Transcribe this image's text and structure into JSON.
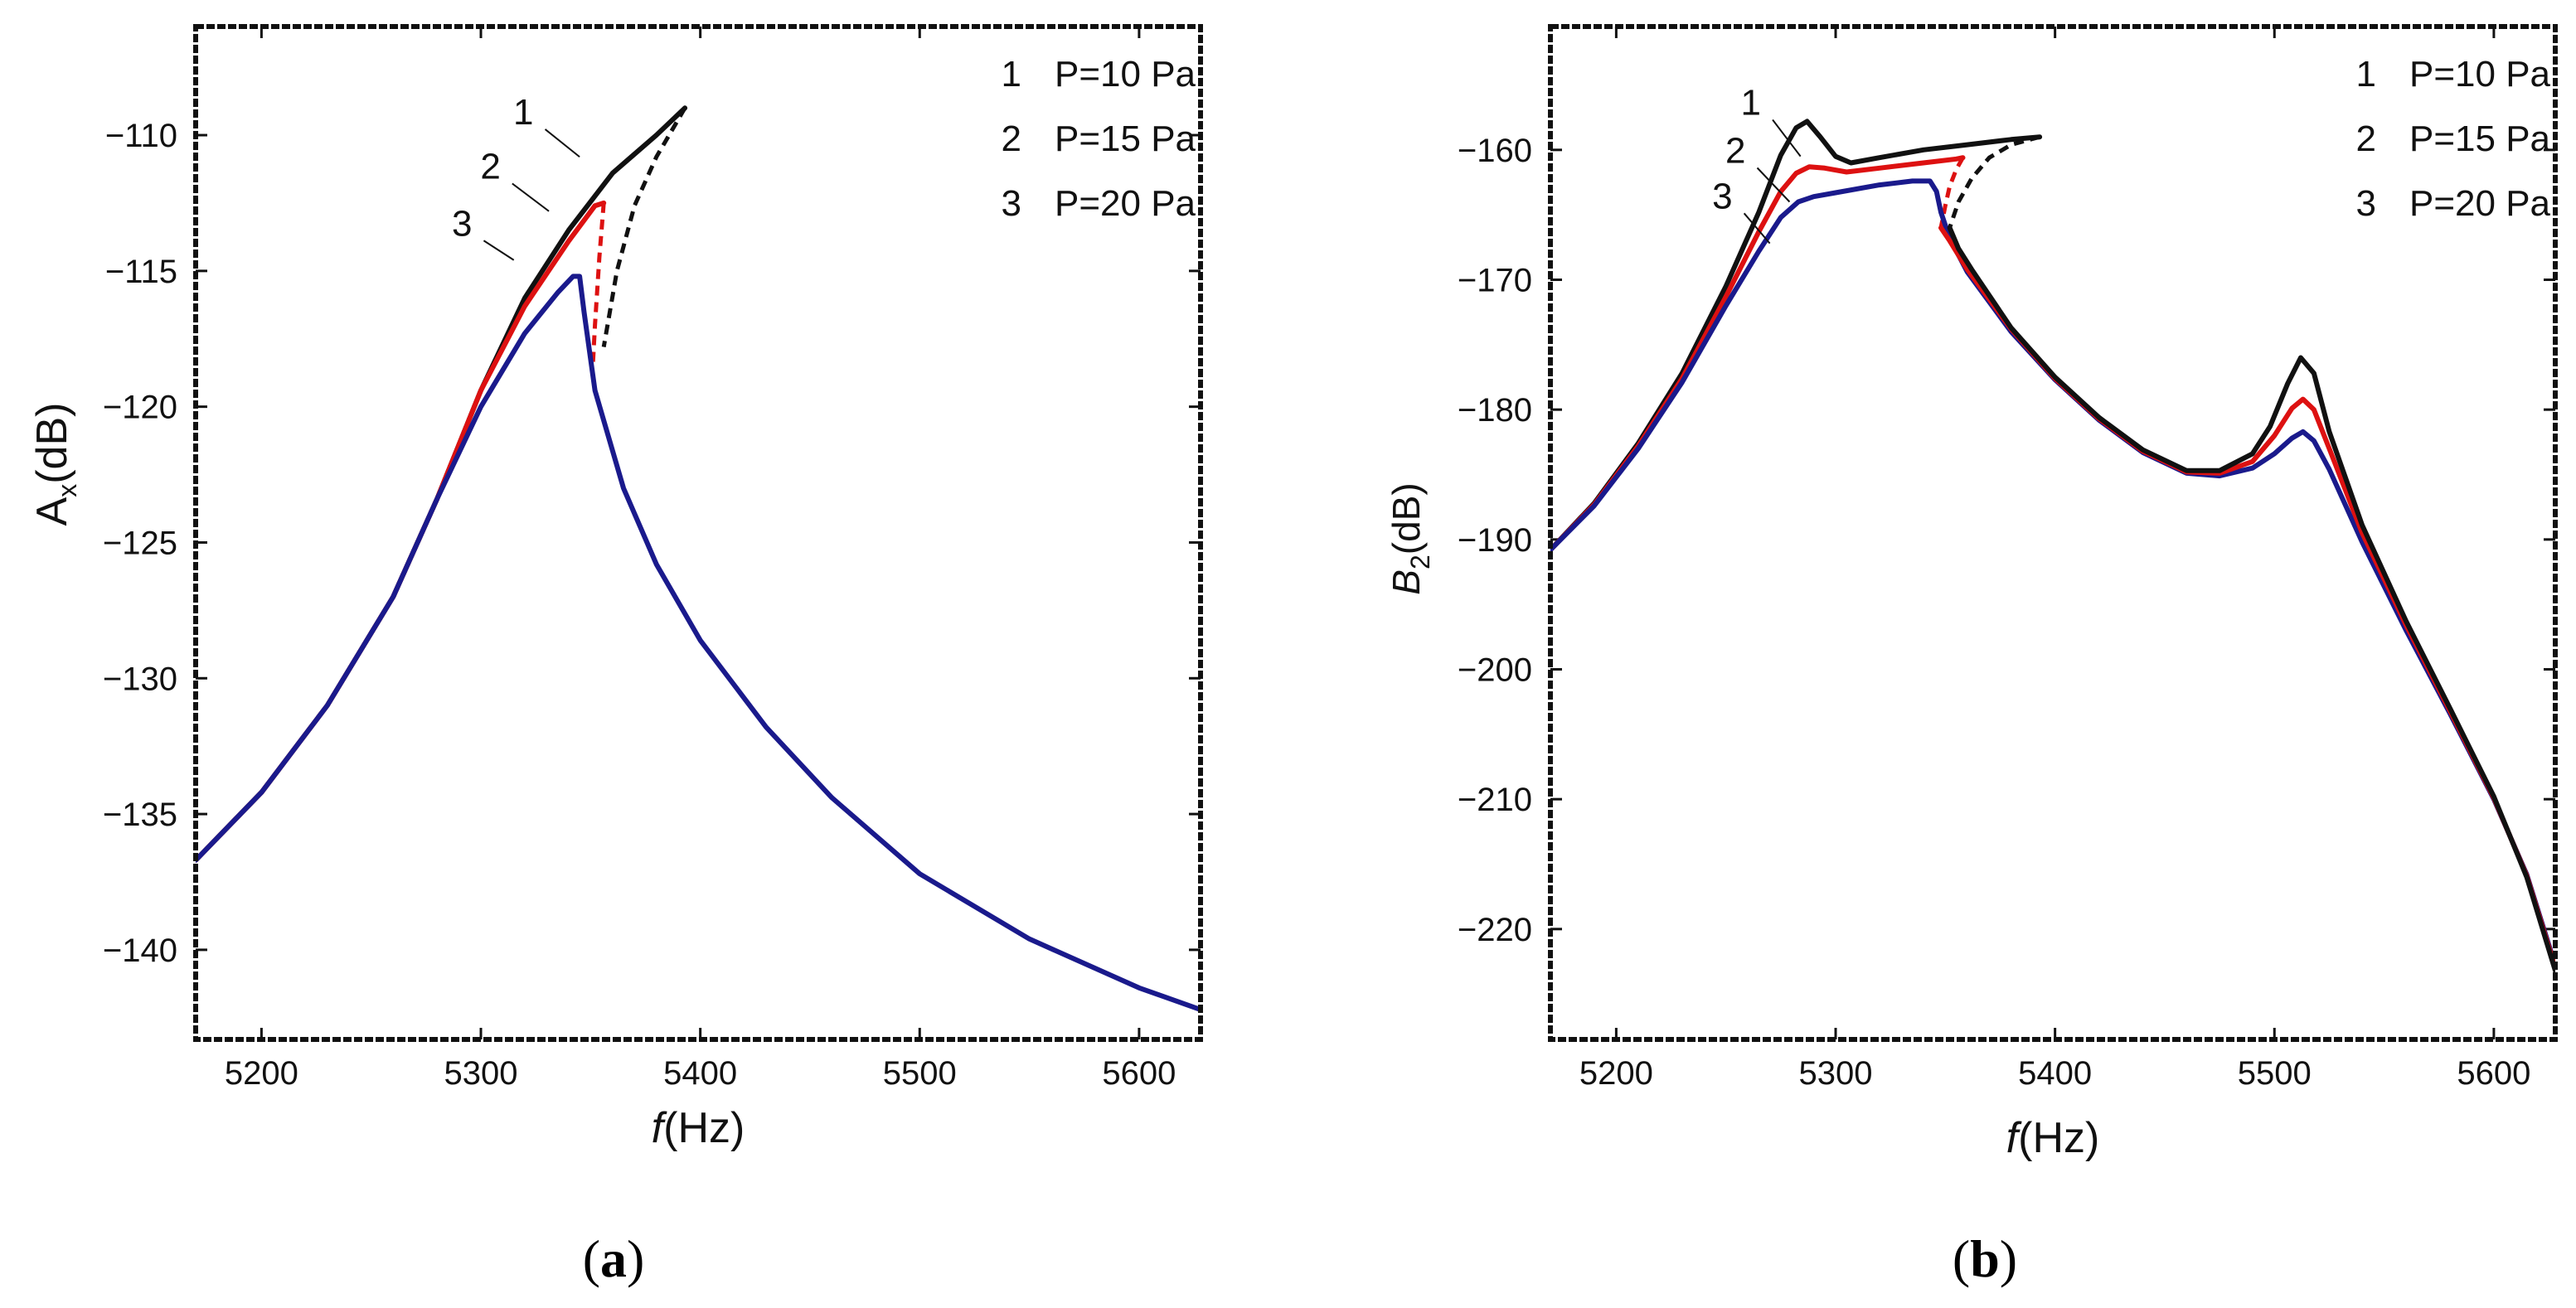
{
  "chart_data": [
    {
      "id": "a",
      "type": "line",
      "caption": {
        "open": "(",
        "letter": "a",
        "close": ")"
      },
      "xlabel": {
        "italic": "f",
        "rest": "(Hz)"
      },
      "ylabel": {
        "main": "A",
        "sub": "x",
        "rest": "(dB)"
      },
      "xlim": [
        5170,
        5628
      ],
      "ylim": [
        -143.3,
        -106.0
      ],
      "xticks": [
        5200,
        5300,
        5400,
        5500,
        5600
      ],
      "yticks": [
        -110,
        -115,
        -120,
        -125,
        -130,
        -135,
        -140
      ],
      "xtick_labels": [
        "5200",
        "5300",
        "5400",
        "5500",
        "5600"
      ],
      "ytick_labels": [
        "−110",
        "−115",
        "−120",
        "−125",
        "−130",
        "−135",
        "−140"
      ],
      "legend": {
        "position": "top-right",
        "entries": [
          {
            "num": "1",
            "text": "P=10 Pa"
          },
          {
            "num": "2",
            "text": "P=15 Pa"
          },
          {
            "num": "3",
            "text": "P=20 Pa"
          }
        ]
      },
      "curve_labels": [
        {
          "text": "1",
          "series": "P=10 Pa",
          "x": 5324,
          "y": -109.6,
          "tx": 5345,
          "ty": -110.8
        },
        {
          "text": "2",
          "series": "P=15 Pa",
          "x": 5309,
          "y": -111.6,
          "tx": 5331,
          "ty": -112.8
        },
        {
          "text": "3",
          "series": "P=20 Pa",
          "x": 5296,
          "y": -113.7,
          "tx": 5315,
          "ty": -114.6
        }
      ],
      "series": [
        {
          "name": "P=10 Pa",
          "color": "#111111",
          "style": "solid",
          "x": [
            5170,
            5200,
            5230,
            5260,
            5280,
            5300,
            5320,
            5340,
            5360,
            5380,
            5393
          ],
          "y": [
            -136.7,
            -134.2,
            -131.0,
            -127.0,
            -123.4,
            -119.4,
            -116.0,
            -113.5,
            -111.4,
            -110.0,
            -109.0
          ]
        },
        {
          "name": "P=10 Pa (unstable)",
          "color": "#111111",
          "style": "dashed",
          "x": [
            5393,
            5380,
            5370,
            5362,
            5356
          ],
          "y": [
            -109.0,
            -110.8,
            -112.6,
            -115.0,
            -117.8
          ]
        },
        {
          "name": "P=15 Pa",
          "color": "#dd1111",
          "style": "solid",
          "x": [
            5170,
            5200,
            5230,
            5260,
            5280,
            5300,
            5320,
            5340,
            5352,
            5356
          ],
          "y": [
            -136.7,
            -134.2,
            -131.0,
            -127.0,
            -123.4,
            -119.4,
            -116.3,
            -113.9,
            -112.6,
            -112.5
          ]
        },
        {
          "name": "P=15 Pa (unstable)",
          "color": "#dd1111",
          "style": "dashed",
          "x": [
            5356,
            5354,
            5352,
            5351
          ],
          "y": [
            -112.5,
            -114.5,
            -117.0,
            -118.5
          ]
        },
        {
          "name": "P=20 Pa",
          "color": "#1a1a8c",
          "style": "solid",
          "x": [
            5170,
            5200,
            5230,
            5260,
            5280,
            5300,
            5320,
            5335,
            5342,
            5345,
            5347,
            5352,
            5365,
            5380,
            5400,
            5430,
            5460,
            5500,
            5550,
            5600,
            5628
          ],
          "y": [
            -136.7,
            -134.2,
            -131.0,
            -127.0,
            -123.4,
            -120.0,
            -117.3,
            -115.8,
            -115.2,
            -115.2,
            -116.5,
            -119.4,
            -123.0,
            -125.8,
            -128.6,
            -131.8,
            -134.4,
            -137.2,
            -139.6,
            -141.4,
            -142.2
          ]
        }
      ]
    },
    {
      "id": "b",
      "type": "line",
      "caption": {
        "open": "(",
        "letter": "b",
        "close": ")"
      },
      "xlabel": {
        "italic": "f",
        "rest": "(Hz)"
      },
      "ylabel": {
        "main": "B",
        "sub": "2",
        "rest": "(dB)"
      },
      "xlim": [
        5170,
        5628
      ],
      "ylim": [
        -228.5,
        -150.5
      ],
      "xticks": [
        5200,
        5300,
        5400,
        5500,
        5600
      ],
      "yticks": [
        -160,
        -170,
        -180,
        -190,
        -200,
        -210,
        -220
      ],
      "xtick_labels": [
        "5200",
        "5300",
        "5400",
        "5500",
        "5600"
      ],
      "ytick_labels": [
        "−160",
        "−170",
        "−180",
        "−190",
        "−200",
        "−210",
        "−220"
      ],
      "legend": {
        "position": "top-right",
        "entries": [
          {
            "num": "1",
            "text": "P=10 Pa"
          },
          {
            "num": "2",
            "text": "P=15 Pa"
          },
          {
            "num": "3",
            "text": "P=20 Pa"
          }
        ]
      },
      "curve_labels": [
        {
          "text": "1",
          "series": "P=10 Pa",
          "x": 5266,
          "y": -157.3,
          "tx": 5284,
          "ty": -160.5
        },
        {
          "text": "2",
          "series": "P=15 Pa",
          "x": 5259,
          "y": -161.0,
          "tx": 5279,
          "ty": -164.0
        },
        {
          "text": "3",
          "series": "P=20 Pa",
          "x": 5253,
          "y": -164.5,
          "tx": 5270,
          "ty": -167.2
        }
      ],
      "series": [
        {
          "name": "P=10 Pa",
          "color": "#111111",
          "style": "solid",
          "x": [
            5170,
            5190,
            5210,
            5230,
            5250,
            5265,
            5275,
            5282,
            5287,
            5293,
            5300,
            5307,
            5320,
            5340,
            5360,
            5380,
            5393
          ],
          "y": [
            -190.8,
            -187.2,
            -182.6,
            -177.2,
            -170.5,
            -164.8,
            -160.4,
            -158.3,
            -157.8,
            -159.0,
            -160.5,
            -161.0,
            -160.6,
            -160.0,
            -159.6,
            -159.2,
            -159.0
          ]
        },
        {
          "name": "P=10 Pa (unstable)",
          "color": "#111111",
          "style": "dashed",
          "x": [
            5393,
            5380,
            5370,
            5362,
            5356,
            5352
          ],
          "y": [
            -159.0,
            -159.6,
            -160.6,
            -162.2,
            -164.0,
            -166.0
          ]
        },
        {
          "name": "P=15 Pa",
          "color": "#dd1111",
          "style": "solid",
          "x": [
            5170,
            5190,
            5210,
            5230,
            5250,
            5265,
            5275,
            5282,
            5288,
            5295,
            5305,
            5320,
            5340,
            5355,
            5358
          ],
          "y": [
            -190.8,
            -187.3,
            -182.8,
            -177.6,
            -171.3,
            -166.3,
            -163.2,
            -161.8,
            -161.3,
            -161.4,
            -161.7,
            -161.4,
            -161.0,
            -160.7,
            -160.6
          ]
        },
        {
          "name": "P=15 Pa (unstable)",
          "color": "#dd1111",
          "style": "dashed",
          "x": [
            5358,
            5355,
            5352,
            5350,
            5348
          ],
          "y": [
            -160.6,
            -161.5,
            -162.8,
            -164.3,
            -166.0
          ]
        },
        {
          "name": "P=20 Pa",
          "color": "#1a1a8c",
          "style": "solid",
          "x": [
            5170,
            5190,
            5210,
            5230,
            5250,
            5265,
            5275,
            5283,
            5290,
            5300,
            5320,
            5335,
            5343,
            5346,
            5348,
            5352,
            5360,
            5380,
            5400,
            5420,
            5440,
            5460,
            5475,
            5490,
            5500,
            5508,
            5513,
            5518,
            5525,
            5540,
            5560,
            5580,
            5600,
            5615,
            5628
          ],
          "y": [
            -190.8,
            -187.4,
            -183.0,
            -177.9,
            -172.0,
            -167.8,
            -165.2,
            -164.0,
            -163.6,
            -163.3,
            -162.7,
            -162.4,
            -162.4,
            -163.2,
            -164.8,
            -166.8,
            -169.4,
            -174.0,
            -177.7,
            -180.8,
            -183.3,
            -184.9,
            -185.1,
            -184.5,
            -183.4,
            -182.2,
            -181.7,
            -182.4,
            -184.6,
            -190.2,
            -197.0,
            -203.4,
            -210.0,
            -215.8,
            -222.8
          ]
        },
        {
          "name": "P=15 Pa (right branch)",
          "color": "#dd1111",
          "style": "solid",
          "x": [
            5348,
            5352,
            5360,
            5380,
            5400,
            5420,
            5440,
            5460,
            5475,
            5490,
            5500,
            5508,
            5513,
            5518,
            5525,
            5540,
            5560,
            5580,
            5600,
            5615,
            5628
          ],
          "y": [
            -166.0,
            -167.0,
            -169.2,
            -173.8,
            -177.6,
            -180.7,
            -183.2,
            -184.8,
            -184.9,
            -184.0,
            -182.0,
            -179.9,
            -179.2,
            -180.0,
            -183.0,
            -189.5,
            -196.6,
            -203.2,
            -209.9,
            -215.9,
            -223.0
          ]
        },
        {
          "name": "P=10 Pa (right branch)",
          "color": "#111111",
          "style": "solid",
          "x": [
            5352,
            5356,
            5362,
            5380,
            5400,
            5420,
            5440,
            5460,
            5475,
            5490,
            5498,
            5506,
            5512,
            5518,
            5525,
            5540,
            5560,
            5580,
            5600,
            5615,
            5628
          ],
          "y": [
            -166.0,
            -167.6,
            -169.2,
            -173.7,
            -177.5,
            -180.6,
            -183.1,
            -184.7,
            -184.7,
            -183.4,
            -181.3,
            -178.0,
            -176.0,
            -177.2,
            -181.7,
            -188.9,
            -196.3,
            -203.0,
            -209.8,
            -216.0,
            -223.2
          ]
        }
      ]
    }
  ]
}
